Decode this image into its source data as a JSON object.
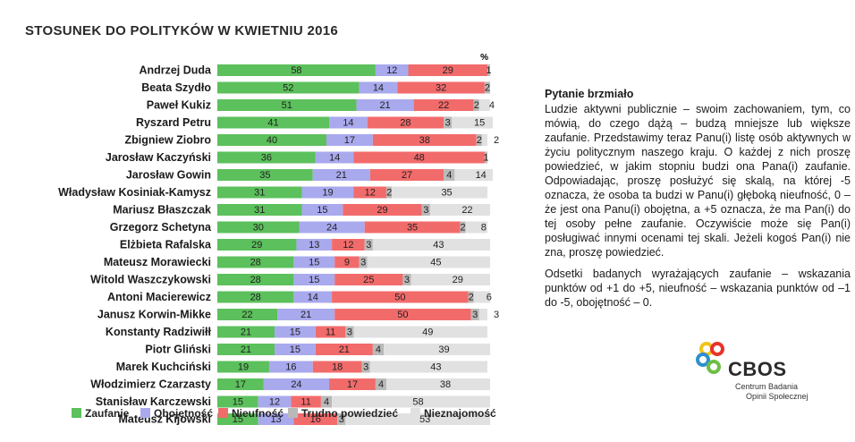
{
  "title": "STOSUNEK DO POLITYKÓW  W KWIETNIU 2016",
  "chart_data": {
    "type": "stacked-bar-horizontal",
    "unit_label": "%",
    "xlim": [
      0,
      100
    ],
    "categories": [
      "Andrzej Duda",
      "Beata Szydło",
      "Paweł Kukiz",
      "Ryszard Petru",
      "Zbigniew Ziobro",
      "Jarosław Kaczyński",
      "Jarosław Gowin",
      "Władysław Kosiniak-Kamysz",
      "Mariusz Błaszczak",
      "Grzegorz Schetyna",
      "Elżbieta Rafalska",
      "Mateusz Morawiecki",
      "Witold Waszczykowski",
      "Antoni Macierewicz",
      "Janusz Korwin-Mikke",
      "Konstanty Radziwiłł",
      "Piotr Gliński",
      "Marek Kuchciński",
      "Włodzimierz Czarzasty",
      "Stanisław Karczewski",
      "Mateusz Kijowski"
    ],
    "series": [
      {
        "name": "Zaufanie",
        "color": "#5cc05c",
        "values": [
          58,
          52,
          51,
          41,
          40,
          36,
          35,
          31,
          31,
          30,
          29,
          28,
          28,
          28,
          22,
          21,
          21,
          19,
          17,
          15,
          15
        ]
      },
      {
        "name": "Obojętność",
        "color": "#a9a9ee",
        "values": [
          12,
          14,
          21,
          14,
          17,
          14,
          21,
          19,
          15,
          24,
          13,
          15,
          15,
          14,
          21,
          15,
          15,
          16,
          24,
          12,
          13
        ]
      },
      {
        "name": "Nieufność",
        "color": "#f26b6b",
        "values": [
          29,
          32,
          22,
          28,
          38,
          48,
          27,
          12,
          29,
          35,
          12,
          9,
          25,
          50,
          50,
          11,
          21,
          18,
          17,
          11,
          16
        ]
      },
      {
        "name": "Trudno powiedzieć",
        "color": "#b9b9b9",
        "values": [
          1,
          2,
          2,
          3,
          2,
          1,
          4,
          2,
          3,
          2,
          3,
          3,
          3,
          2,
          3,
          3,
          4,
          3,
          4,
          4,
          3
        ]
      },
      {
        "name": "Nieznajomość",
        "color": "#e1e1e1",
        "values": [
          0,
          0,
          4,
          15,
          2,
          0,
          14,
          35,
          22,
          8,
          43,
          45,
          29,
          6,
          3,
          49,
          39,
          43,
          38,
          58,
          53
        ]
      }
    ]
  },
  "question": {
    "title": "Pytanie brzmiało",
    "body": "Ludzie aktywni publicznie – swoim zachowaniem, tym, co mówią, do czego dążą – budzą mniejsze lub większe zaufanie. Przedstawimy teraz Panu(i) listę osób aktywnych w życiu politycznym naszego kraju. O każdej z nich proszę powiedzieć, w jakim stopniu budzi ona Pana(i) zaufanie. Odpowiadając, proszę posłużyć się skalą, na której -5 oznacza, że osoba ta budzi w Panu(i) głęboką nieufność, 0 – że jest ona Panu(i) obojętna, a +5 oznacza, że ma Pan(i) do tej osoby pełne zaufanie. Oczywiście może się Pan(i) posługiwać innymi ocenami tej skali. Jeżeli kogoś Pan(i) nie zna, proszę powiedzieć.",
    "note": "Odsetki badanych wyrażających zaufanie – wskazania punktów od +1 do +5, nieufność – wskazania punktów od –1 do -5, obojętność – 0."
  },
  "logo": {
    "word": "CBOS",
    "sub_line1": "Centrum Badania",
    "sub_line2": "Opinii Społecznej",
    "colors": [
      "#f0c419",
      "#e8332a",
      "#2e8fd0",
      "#6cbe45"
    ]
  }
}
